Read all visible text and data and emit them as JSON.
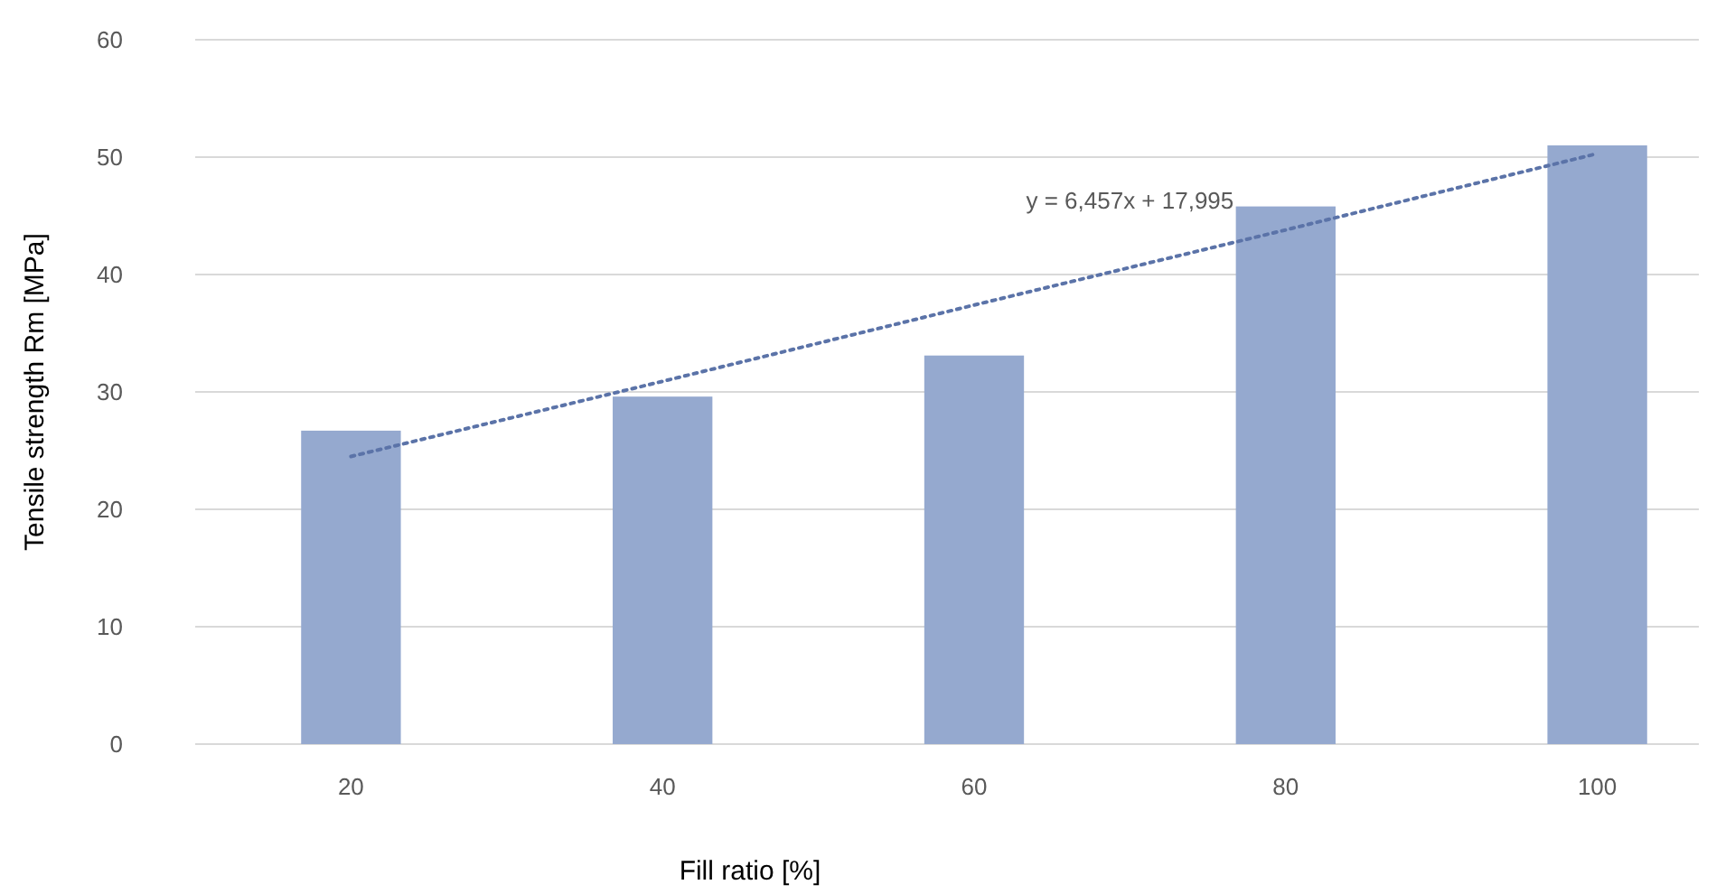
{
  "chart_data": {
    "type": "bar",
    "xlabel": "Fill ratio [%]",
    "ylabel": "Tensile strength Rm [MPa]",
    "categories": [
      "20",
      "40",
      "60",
      "80",
      "100"
    ],
    "series": [
      {
        "color": "#95a9cf",
        "values": [
          26.7,
          29.6,
          33.1,
          45.8,
          51.0
        ]
      },
      {
        "type": "line",
        "color": "#5b73a8",
        "line_style": "dotted",
        "x": [
          "20",
          "40",
          "60",
          "80",
          "100"
        ],
        "values": [
          24.5,
          30.9,
          37.4,
          43.8,
          50.3
        ]
      }
    ],
    "annotations": [
      "y = 6,457x + 17,995"
    ],
    "ylim": [
      0,
      60
    ],
    "yticks": [
      0,
      10,
      20,
      30,
      40,
      50,
      60
    ],
    "grid": "y"
  }
}
